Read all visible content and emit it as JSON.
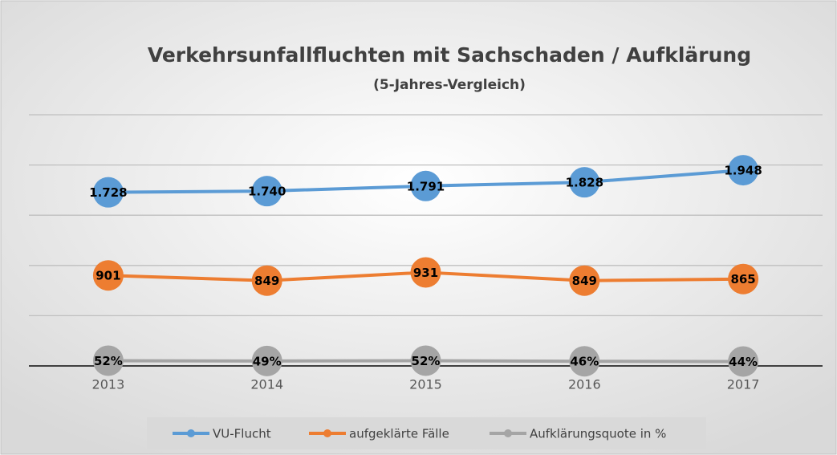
{
  "chart_data": {
    "type": "line",
    "title": "Verkehrsunfallfluchten mit Sachschaden / Aufklärung",
    "subtitle": "(5-Jahres-Vergleich)",
    "categories": [
      "2013",
      "2014",
      "2015",
      "2016",
      "2017"
    ],
    "series": [
      {
        "name": "VU-Flucht",
        "color": "#5b9bd5",
        "values": [
          1728,
          1740,
          1791,
          1828,
          1948
        ],
        "value_labels": [
          "1.728",
          "1.740",
          "1.791",
          "1.828",
          "1.948"
        ]
      },
      {
        "name": "aufgeklärte Fälle",
        "color": "#ed7d31",
        "values": [
          901,
          849,
          931,
          849,
          865
        ]
      },
      {
        "name": "Aufklärungsquote in %",
        "color": "#a5a5a5",
        "values": [
          52,
          49,
          52,
          46,
          44
        ],
        "value_labels": [
          "52%",
          "49%",
          "52%",
          "46%",
          "44%"
        ]
      }
    ],
    "ylim": [
      0,
      2500
    ],
    "yticks": [
      0,
      500,
      1000,
      1500,
      2000,
      2500
    ],
    "grid": true,
    "legend": "bottom"
  }
}
